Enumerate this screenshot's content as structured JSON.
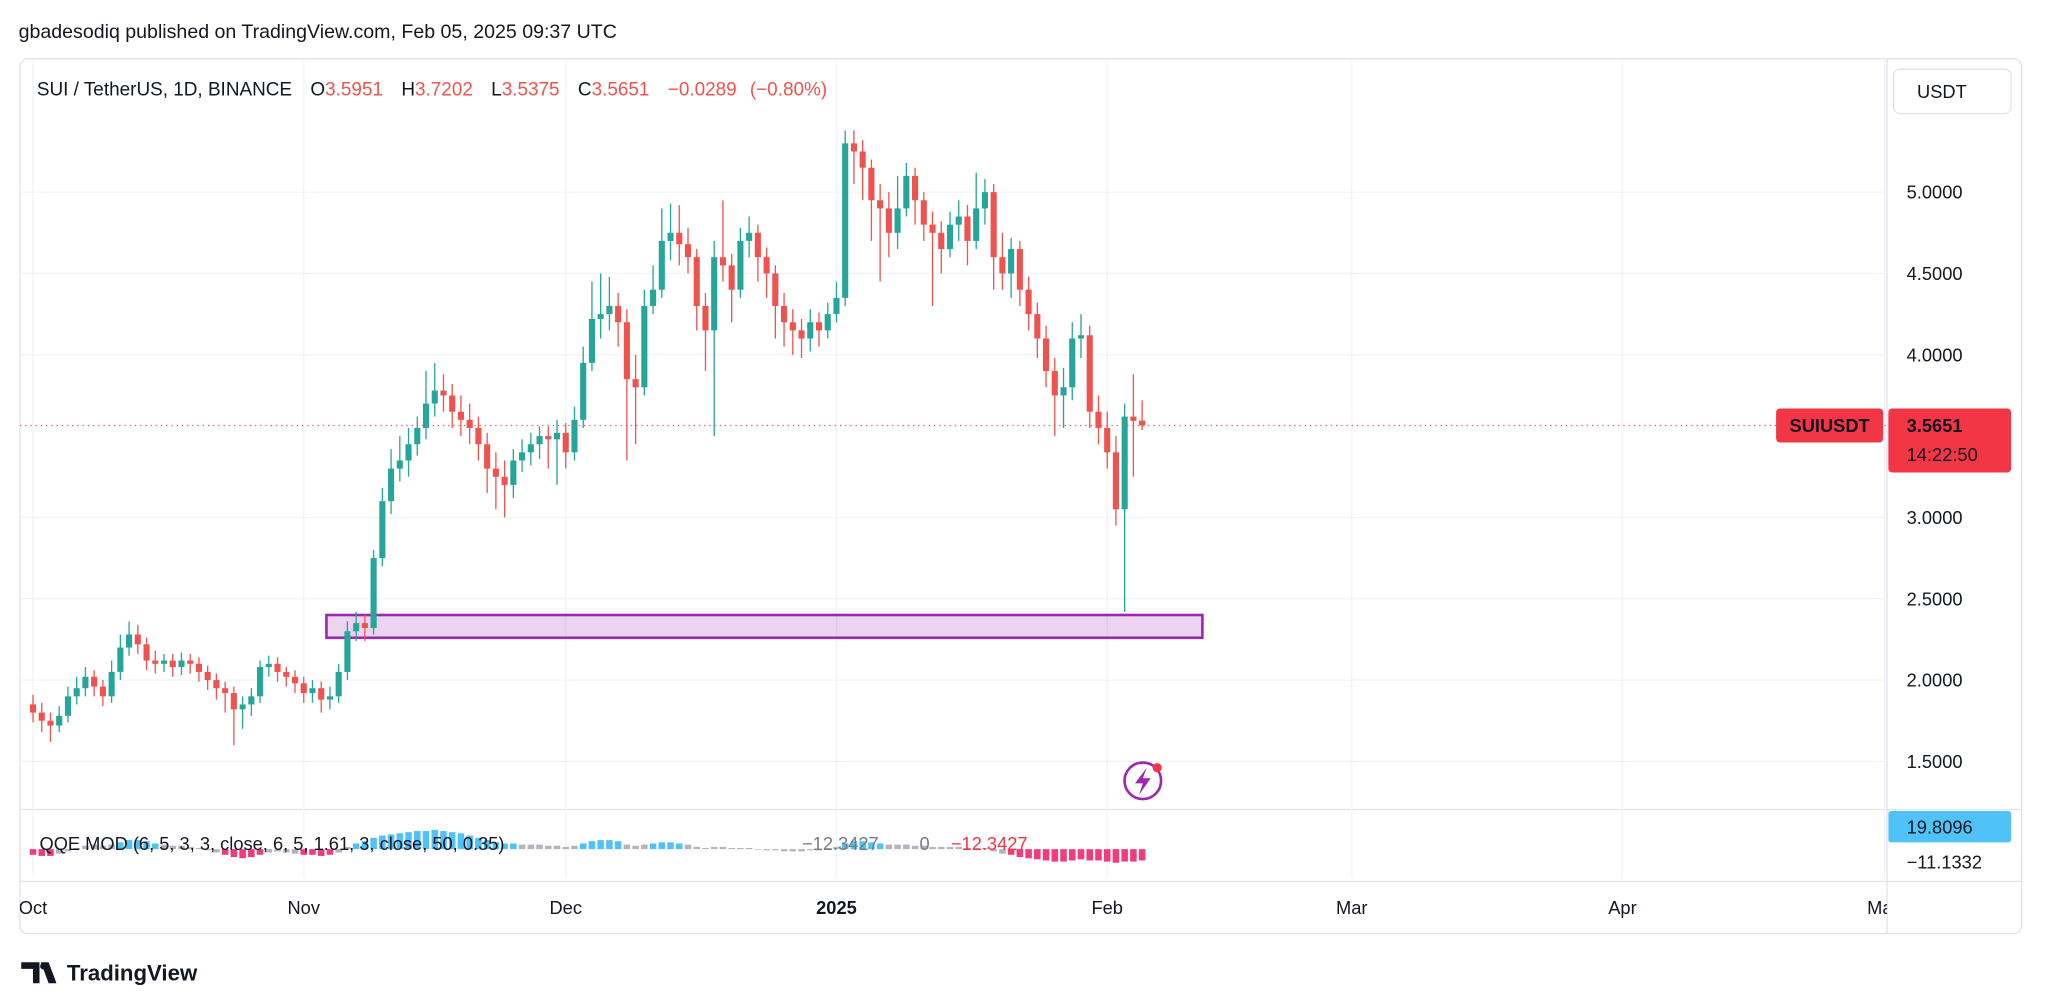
{
  "chart_data": {
    "type": "candlestick",
    "header": "gbadesodiq published on TradingView.com, Feb 05, 2025 09:37 UTC",
    "title": "SUI / TetherUS, 1D, BINANCE",
    "ohlc_labels": [
      "O",
      "H",
      "L",
      "C"
    ],
    "change": {
      "value": -0.0289,
      "label": "−0.0289"
    },
    "change_percent": {
      "value": -0.8,
      "label": "(−0.80%)"
    },
    "currency": "USDT",
    "symbol": "SUIUSDT",
    "countdown": "14:22:50",
    "watermark": "TradingView",
    "up_color": "#26a69a",
    "down_color": "#ef5350",
    "grid": true,
    "x": [
      0,
      1,
      2,
      3,
      4,
      5,
      6,
      7,
      8,
      9,
      10,
      11,
      12,
      13,
      14,
      15,
      16,
      17,
      18,
      19,
      20,
      21,
      22,
      23,
      24,
      25,
      26,
      27,
      28,
      29,
      30,
      31,
      32,
      33,
      34,
      35,
      36,
      37,
      38,
      39,
      40,
      41,
      42,
      43,
      44,
      45,
      46,
      47,
      48,
      49,
      50,
      51,
      52,
      53,
      54,
      55,
      56,
      57,
      58,
      59,
      60,
      61,
      62,
      63,
      64,
      65,
      66,
      67,
      68,
      69,
      70,
      71,
      72,
      73,
      74,
      75,
      76,
      77,
      78,
      79,
      80,
      81,
      82,
      83,
      84,
      85,
      86,
      87,
      88,
      89,
      90,
      91,
      92,
      93,
      94,
      95,
      96,
      97,
      98,
      99,
      100,
      101,
      102,
      103,
      104,
      105,
      106,
      107,
      108,
      109,
      110,
      111,
      112,
      113,
      114,
      115,
      116,
      117,
      118,
      119,
      120,
      121,
      122,
      123,
      124,
      125,
      126,
      127
    ],
    "open": [
      1.85,
      1.8,
      1.75,
      1.72,
      1.78,
      1.9,
      1.95,
      2.02,
      1.96,
      1.9,
      2.05,
      2.2,
      2.28,
      2.22,
      2.12,
      2.1,
      2.12,
      2.08,
      2.12,
      2.1,
      2.05,
      2.0,
      1.95,
      1.92,
      1.82,
      1.85,
      1.9,
      2.08,
      2.1,
      2.05,
      2.02,
      1.98,
      1.92,
      1.95,
      1.88,
      1.9,
      2.05,
      2.3,
      2.35,
      2.32,
      2.75,
      3.1,
      3.3,
      3.35,
      3.45,
      3.55,
      3.7,
      3.78,
      3.75,
      3.65,
      3.6,
      3.55,
      3.45,
      3.3,
      3.25,
      3.2,
      3.35,
      3.4,
      3.45,
      3.5,
      3.48,
      3.52,
      3.4,
      3.6,
      3.95,
      4.22,
      4.25,
      4.3,
      4.2,
      3.85,
      3.8,
      4.3,
      4.4,
      4.7,
      4.75,
      4.68,
      4.6,
      4.3,
      4.15,
      4.6,
      4.55,
      4.4,
      4.7,
      4.75,
      4.6,
      4.5,
      4.3,
      4.2,
      4.15,
      4.1,
      4.2,
      4.15,
      4.25,
      4.35,
      5.3,
      5.25,
      5.15,
      4.95,
      4.9,
      4.75,
      4.9,
      5.1,
      4.95,
      4.8,
      4.75,
      4.65,
      4.8,
      4.85,
      4.7,
      4.9,
      5.0,
      4.6,
      4.5,
      4.65,
      4.4,
      4.25,
      4.1,
      3.9,
      3.75,
      3.8,
      4.1,
      4.12,
      3.65,
      3.55,
      3.4,
      3.05,
      3.62,
      3.5951
    ],
    "high": [
      1.91,
      1.86,
      1.8,
      1.84,
      1.96,
      2.02,
      2.08,
      2.06,
      2.0,
      2.12,
      2.28,
      2.36,
      2.34,
      2.26,
      2.18,
      2.16,
      2.16,
      2.17,
      2.16,
      2.14,
      2.09,
      2.04,
      1.99,
      1.96,
      1.9,
      1.95,
      2.12,
      2.15,
      2.14,
      2.08,
      2.06,
      2.02,
      2.0,
      1.99,
      1.96,
      2.1,
      2.36,
      2.42,
      2.4,
      2.8,
      3.18,
      3.42,
      3.5,
      3.55,
      3.62,
      3.9,
      3.95,
      3.88,
      3.82,
      3.75,
      3.7,
      3.62,
      3.52,
      3.4,
      3.35,
      3.42,
      3.48,
      3.52,
      3.56,
      3.56,
      3.6,
      3.58,
      3.68,
      4.05,
      4.45,
      4.5,
      4.48,
      4.38,
      4.28,
      4.0,
      4.4,
      4.55,
      4.9,
      4.93,
      4.92,
      4.78,
      4.65,
      4.38,
      4.7,
      4.95,
      4.62,
      4.78,
      4.85,
      4.8,
      4.66,
      4.55,
      4.38,
      4.28,
      4.22,
      4.28,
      4.26,
      4.32,
      4.45,
      5.38,
      5.38,
      5.32,
      5.2,
      5.05,
      5.0,
      5.1,
      5.18,
      5.15,
      5.0,
      4.88,
      4.82,
      4.88,
      4.95,
      4.92,
      5.12,
      5.08,
      5.05,
      4.75,
      4.72,
      4.7,
      4.48,
      4.32,
      4.18,
      3.98,
      3.92,
      4.2,
      4.25,
      4.18,
      3.75,
      3.65,
      3.5,
      3.7,
      3.88,
      3.7202
    ],
    "low": [
      1.74,
      1.68,
      1.62,
      1.68,
      1.74,
      1.85,
      1.9,
      1.9,
      1.84,
      1.86,
      2.0,
      2.15,
      2.16,
      2.06,
      2.04,
      2.05,
      2.02,
      2.03,
      2.04,
      1.99,
      1.94,
      1.88,
      1.8,
      1.6,
      1.7,
      1.78,
      1.86,
      2.02,
      1.99,
      1.96,
      1.92,
      1.86,
      1.86,
      1.8,
      1.82,
      1.86,
      2.0,
      2.24,
      2.24,
      2.28,
      2.7,
      3.02,
      3.22,
      3.25,
      3.38,
      3.48,
      3.62,
      3.65,
      3.55,
      3.5,
      3.45,
      3.35,
      3.15,
      3.05,
      3.0,
      3.12,
      3.28,
      3.32,
      3.36,
      3.3,
      3.2,
      3.3,
      3.35,
      3.55,
      3.9,
      4.1,
      4.15,
      4.05,
      3.35,
      3.45,
      3.75,
      4.25,
      4.35,
      4.58,
      4.55,
      4.5,
      4.15,
      3.9,
      3.5,
      4.45,
      4.2,
      4.35,
      4.6,
      4.45,
      4.35,
      4.1,
      4.05,
      4.0,
      3.98,
      4.02,
      4.05,
      4.1,
      4.2,
      4.3,
      5.05,
      4.95,
      4.7,
      4.45,
      4.6,
      4.65,
      4.85,
      4.8,
      4.7,
      4.3,
      4.5,
      4.6,
      4.7,
      4.55,
      4.65,
      4.8,
      4.4,
      4.4,
      4.35,
      4.3,
      4.15,
      3.98,
      3.8,
      3.5,
      3.55,
      3.72,
      3.98,
      3.55,
      3.45,
      3.3,
      2.95,
      2.42,
      3.25,
      3.5375
    ],
    "close": [
      1.8,
      1.75,
      1.72,
      1.78,
      1.9,
      1.95,
      2.02,
      1.96,
      1.9,
      2.05,
      2.2,
      2.28,
      2.22,
      2.12,
      2.1,
      2.12,
      2.08,
      2.12,
      2.1,
      2.05,
      2.0,
      1.95,
      1.92,
      1.82,
      1.85,
      1.9,
      2.08,
      2.1,
      2.05,
      2.02,
      1.98,
      1.92,
      1.95,
      1.88,
      1.9,
      2.05,
      2.3,
      2.35,
      2.32,
      2.75,
      3.1,
      3.3,
      3.35,
      3.45,
      3.55,
      3.7,
      3.78,
      3.75,
      3.65,
      3.6,
      3.55,
      3.45,
      3.3,
      3.25,
      3.2,
      3.35,
      3.4,
      3.45,
      3.5,
      3.48,
      3.52,
      3.4,
      3.6,
      3.95,
      4.22,
      4.25,
      4.3,
      4.2,
      3.85,
      3.8,
      4.3,
      4.4,
      4.7,
      4.75,
      4.68,
      4.6,
      4.3,
      4.15,
      4.6,
      4.55,
      4.4,
      4.7,
      4.75,
      4.6,
      4.5,
      4.3,
      4.2,
      4.15,
      4.1,
      4.2,
      4.15,
      4.25,
      4.35,
      5.3,
      5.25,
      5.15,
      4.95,
      4.9,
      4.75,
      4.9,
      5.1,
      4.95,
      4.8,
      4.75,
      4.65,
      4.8,
      4.85,
      4.7,
      4.9,
      5.0,
      4.6,
      4.5,
      4.65,
      4.4,
      4.25,
      4.1,
      3.9,
      3.75,
      3.8,
      4.1,
      4.12,
      3.65,
      3.55,
      3.4,
      3.05,
      3.62,
      3.594,
      3.5651
    ],
    "xlim": [
      -1.5,
      212.3
    ],
    "xticks": [
      {
        "value": 0,
        "label": "Oct"
      },
      {
        "value": 31,
        "label": "Nov"
      },
      {
        "value": 61,
        "label": "Dec"
      },
      {
        "value": 92,
        "label": "2025"
      },
      {
        "value": 123,
        "label": "Feb"
      },
      {
        "value": 151,
        "label": "Mar"
      },
      {
        "value": 182,
        "label": "Apr"
      },
      {
        "value": 212,
        "label": "May"
      }
    ],
    "ylim": [
      1.22,
      5.82
    ],
    "yticks": [
      {
        "value": 1.5,
        "label": "1.5000"
      },
      {
        "value": 2,
        "label": "2.0000"
      },
      {
        "value": 2.5,
        "label": "2.5000"
      },
      {
        "value": 3,
        "label": "3.0000"
      },
      {
        "value": 4,
        "label": "4.0000"
      },
      {
        "value": 4.5,
        "label": "4.5000"
      },
      {
        "value": 5,
        "label": "5.0000"
      }
    ],
    "zone": {
      "x_range": [
        33.6,
        133.9
      ],
      "y_range": [
        2.26,
        2.4
      ],
      "color": "#9c27b0"
    },
    "indicator": {
      "type": "histogram",
      "name": "QQE MOD (6, 5, 3, 3, close, 6, 5, 1.61, 3, close, 50, 0.35)",
      "ylim": [
        -25,
        35
      ],
      "values": [
        -5,
        -6,
        -6,
        -4,
        -2,
        1,
        3,
        4,
        3,
        4,
        6,
        8,
        8,
        7,
        5,
        4,
        3,
        3,
        2,
        1,
        -1,
        -3,
        -5,
        -7,
        -8,
        -7,
        -5,
        -3,
        -2,
        -3,
        -4,
        -5,
        -5,
        -6,
        -5,
        -3,
        2,
        5,
        7,
        10,
        12,
        13,
        14,
        15,
        16,
        16,
        17,
        16,
        15,
        14,
        12,
        10,
        8,
        6,
        5,
        5,
        4,
        4,
        4,
        3,
        3,
        2,
        3,
        5,
        7,
        8,
        8,
        7,
        4,
        3,
        4,
        5,
        6,
        6,
        5,
        4,
        2,
        1,
        2,
        2,
        1,
        1,
        1,
        0,
        -1,
        -1,
        -2,
        -2,
        -2,
        -1,
        -1,
        1,
        2,
        5,
        7,
        7,
        6,
        5,
        4,
        4,
        4,
        3,
        3,
        2,
        2,
        2,
        2,
        1,
        1,
        1,
        -2,
        -4,
        -5,
        -7,
        -8,
        -9,
        -10,
        -11,
        -11,
        -10,
        -9,
        -10,
        -10,
        -11,
        -12,
        -11,
        -11,
        -10
      ],
      "readouts": [
        {
          "value": -12.3427,
          "label": "−12.3427"
        },
        0,
        {
          "value": -12.3427,
          "label": "−12.3427"
        }
      ],
      "axis_labels": [
        19.8096,
        {
          "value": -11.1332,
          "label": "−11.1332"
        }
      ]
    }
  }
}
